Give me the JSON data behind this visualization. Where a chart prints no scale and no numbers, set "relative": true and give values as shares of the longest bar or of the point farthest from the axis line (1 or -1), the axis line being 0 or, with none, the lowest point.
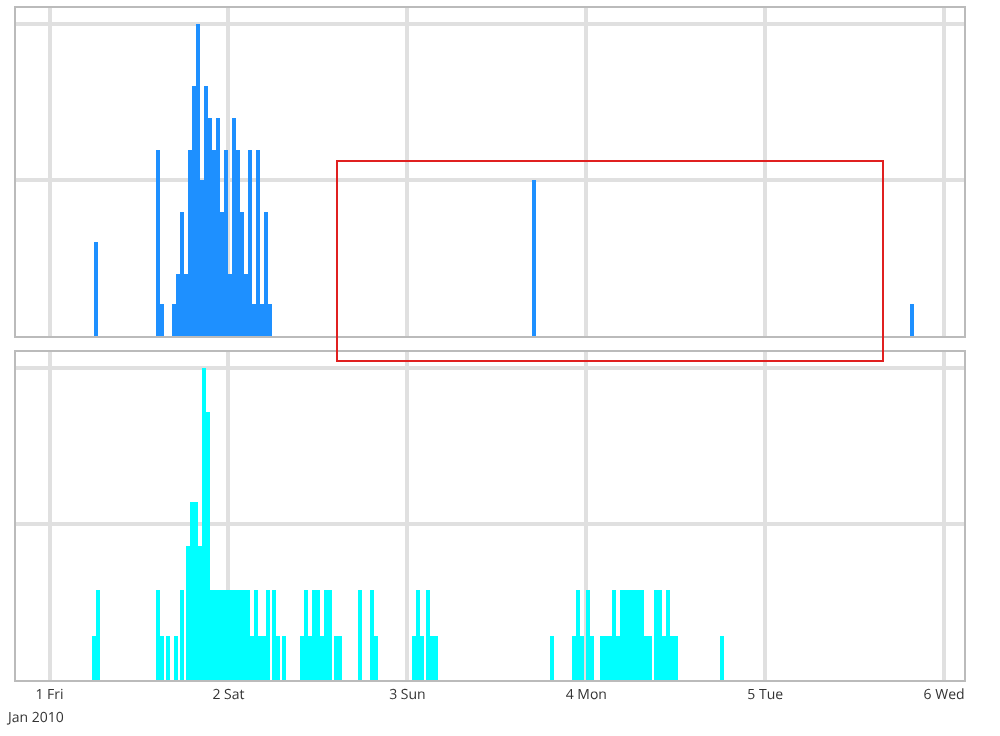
{
  "chart_data": [
    {
      "type": "bar",
      "relative": true,
      "color": "#1e90ff",
      "grid": true,
      "tick_labels": false,
      "xlim": [
        "2009-12-31T19:30",
        "2010-01-06T02:40"
      ],
      "xticks": [
        {
          "value": "2010-01-01",
          "label": null
        },
        {
          "value": "2010-01-02",
          "label": null
        },
        {
          "value": "2010-01-03",
          "label": null
        },
        {
          "value": "2010-01-04",
          "label": null
        },
        {
          "value": "2010-01-05",
          "label": null
        },
        {
          "value": "2010-01-06",
          "label": null
        }
      ],
      "x": [
        "2010-01-01T06:08",
        "2010-01-01T14:40",
        "2010-01-01T15:12",
        "2010-01-01T16:48",
        "2010-01-01T17:20",
        "2010-01-01T17:52",
        "2010-01-01T18:24",
        "2010-01-01T18:56",
        "2010-01-01T19:28",
        "2010-01-01T20:00",
        "2010-01-01T20:32",
        "2010-01-01T21:04",
        "2010-01-01T21:36",
        "2010-01-01T22:08",
        "2010-01-01T22:40",
        "2010-01-01T23:12",
        "2010-01-01T23:44",
        "2010-01-02T00:16",
        "2010-01-02T00:48",
        "2010-01-02T01:20",
        "2010-01-02T01:52",
        "2010-01-02T02:24",
        "2010-01-02T02:56",
        "2010-01-02T03:28",
        "2010-01-02T04:00",
        "2010-01-02T04:32",
        "2010-01-02T05:04",
        "2010-01-02T05:36",
        "2010-01-03T17:04",
        "2010-01-05T19:44"
      ],
      "values": [
        0.3,
        0.6,
        0.1,
        0.1,
        0.2,
        0.4,
        0.2,
        0.6,
        0.8,
        1,
        0.5,
        0.8,
        0.7,
        0.6,
        0.7,
        0.4,
        0.6,
        0.2,
        0.7,
        0.6,
        0.4,
        0.2,
        0.6,
        0.1,
        0.6,
        0.1,
        0.4,
        0.1,
        0.5,
        0.1
      ]
    },
    {
      "type": "bar",
      "relative": true,
      "color": "#00ffff",
      "grid": true,
      "tick_labels": "x",
      "xlim": [
        "2009-12-31T19:30",
        "2010-01-06T02:40"
      ],
      "xticks": [
        {
          "value": "2010-01-01",
          "label": "1 Fri"
        },
        {
          "value": "2010-01-02",
          "label": "2 Sat"
        },
        {
          "value": "2010-01-03",
          "label": "3 Sun"
        },
        {
          "value": "2010-01-04",
          "label": "4 Mon"
        },
        {
          "value": "2010-01-05",
          "label": "5 Tue"
        },
        {
          "value": "2010-01-06",
          "label": "6 Wed"
        }
      ],
      "annotations": [
        "Jan 2010"
      ],
      "x": [
        "2010-01-01T05:52",
        "2010-01-01T06:24",
        "2010-01-01T14:40",
        "2010-01-01T15:12",
        "2010-01-01T16:00",
        "2010-01-01T17:04",
        "2010-01-01T17:52",
        "2010-01-01T18:40",
        "2010-01-01T19:12",
        "2010-01-01T19:44",
        "2010-01-01T20:16",
        "2010-01-01T20:48",
        "2010-01-01T21:20",
        "2010-01-01T21:52",
        "2010-01-01T22:24",
        "2010-01-01T22:56",
        "2010-01-01T23:28",
        "2010-01-02T00:00",
        "2010-01-02T00:32",
        "2010-01-02T01:04",
        "2010-01-02T01:36",
        "2010-01-02T02:08",
        "2010-01-02T02:40",
        "2010-01-02T03:12",
        "2010-01-02T03:44",
        "2010-01-02T04:16",
        "2010-01-02T04:48",
        "2010-01-02T05:20",
        "2010-01-02T06:08",
        "2010-01-02T06:40",
        "2010-01-02T07:28",
        "2010-01-02T09:52",
        "2010-01-02T10:24",
        "2010-01-02T10:56",
        "2010-01-02T11:28",
        "2010-01-02T12:00",
        "2010-01-02T12:32",
        "2010-01-02T13:04",
        "2010-01-02T13:36",
        "2010-01-02T14:24",
        "2010-01-02T14:56",
        "2010-01-02T17:36",
        "2010-01-02T19:12",
        "2010-01-02T19:44",
        "2010-01-03T00:48",
        "2010-01-03T01:20",
        "2010-01-03T01:52",
        "2010-01-03T02:40",
        "2010-01-03T03:12",
        "2010-01-03T03:44",
        "2010-01-03T19:28",
        "2010-01-03T22:24",
        "2010-01-03T22:56",
        "2010-01-03T23:28",
        "2010-01-04T00:16",
        "2010-01-04T00:48",
        "2010-01-04T02:08",
        "2010-01-04T02:40",
        "2010-01-04T03:12",
        "2010-01-04T03:44",
        "2010-01-04T04:16",
        "2010-01-04T04:48",
        "2010-01-04T05:20",
        "2010-01-04T05:52",
        "2010-01-04T06:24",
        "2010-01-04T06:56",
        "2010-01-04T07:28",
        "2010-01-04T08:00",
        "2010-01-04T08:32",
        "2010-01-04T09:20",
        "2010-01-04T09:52",
        "2010-01-04T10:24",
        "2010-01-04T10:56",
        "2010-01-04T11:28",
        "2010-01-04T12:00",
        "2010-01-04T18:08"
      ],
      "values": [
        0.14,
        0.29,
        0.29,
        0.14,
        0.14,
        0.14,
        0.29,
        0.43,
        0.57,
        0.57,
        0.43,
        1,
        0.86,
        0.29,
        0.29,
        0.29,
        0.29,
        0.29,
        0.29,
        0.29,
        0.29,
        0.29,
        0.29,
        0.14,
        0.29,
        0.14,
        0.14,
        0.29,
        0.29,
        0.14,
        0.14,
        0.14,
        0.29,
        0.14,
        0.29,
        0.29,
        0.14,
        0.29,
        0.29,
        0.14,
        0.14,
        0.29,
        0.29,
        0.14,
        0.14,
        0.29,
        0.14,
        0.29,
        0.14,
        0.14,
        0.14,
        0.14,
        0.29,
        0.14,
        0.29,
        0.14,
        0.14,
        0.14,
        0.14,
        0.29,
        0.14,
        0.29,
        0.29,
        0.29,
        0.29,
        0.29,
        0.29,
        0.14,
        0.14,
        0.29,
        0.29,
        0.14,
        0.29,
        0.14,
        0.14,
        0.14
      ]
    }
  ]
}
